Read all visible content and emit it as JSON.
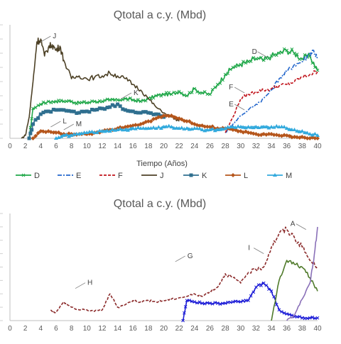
{
  "chart_data": [
    {
      "type": "line",
      "title": "Qtotal a c.y. (Mbd)",
      "xlabel": "Tiempo (Años)",
      "ylabel": "",
      "xlim": [
        0,
        40
      ],
      "ylim": [
        0,
        80
      ],
      "x_ticks": [
        "0",
        "2",
        "4",
        "6",
        "8",
        "10",
        "12",
        "14",
        "16",
        "18",
        "20",
        "22",
        "24",
        "26",
        "28",
        "30",
        "32",
        "34",
        "36",
        "38",
        "40"
      ],
      "grid": false,
      "legend": "bottom",
      "series": [
        {
          "name": "D",
          "color": "#21a84a",
          "marker": "x",
          "dash": "solid",
          "x": [
            2.5,
            3,
            4,
            5,
            6,
            7,
            8,
            9,
            10,
            11,
            12,
            13,
            14,
            15,
            16,
            17,
            18,
            19,
            20,
            21,
            22,
            23,
            24,
            25,
            26,
            27,
            28,
            29,
            30,
            31,
            32,
            33,
            34,
            35,
            36,
            37,
            38,
            39,
            40
          ],
          "y": [
            0,
            21,
            24,
            26,
            26,
            26,
            26,
            25,
            25,
            26,
            26,
            27,
            27,
            28,
            27,
            26,
            28,
            30,
            31,
            31,
            33,
            30,
            35,
            32,
            31,
            38,
            45,
            50,
            52,
            54,
            56,
            55,
            58,
            60,
            62,
            60,
            56,
            58,
            48
          ]
        },
        {
          "name": "E",
          "color": "#2266cc",
          "marker": "none",
          "dash": "dashdot",
          "x": [
            28,
            29,
            30,
            31,
            32,
            33,
            34,
            35,
            36,
            37,
            38,
            39,
            39.5,
            40
          ],
          "y": [
            4,
            10,
            16,
            20,
            24,
            28,
            34,
            42,
            47,
            52,
            54,
            60,
            62,
            56
          ]
        },
        {
          "name": "F",
          "color": "#c0121a",
          "marker": "none",
          "dash": "dash",
          "x": [
            28,
            29,
            30,
            31,
            32,
            33,
            34,
            35,
            36,
            37,
            38,
            39,
            40
          ],
          "y": [
            4,
            15,
            28,
            31,
            33,
            34,
            35,
            37,
            38,
            40,
            43,
            45,
            47
          ]
        },
        {
          "name": "J",
          "color": "#4d4126",
          "marker": "none",
          "dash": "solid",
          "x": [
            1.5,
            2,
            2.5,
            3,
            3.5,
            4,
            4.5,
            5,
            5.5,
            6,
            6.5,
            7,
            8,
            9,
            10,
            11,
            12,
            13,
            14,
            15,
            16,
            17,
            18,
            19,
            20,
            21,
            22
          ],
          "y": [
            0,
            2,
            15,
            40,
            68,
            70,
            58,
            64,
            66,
            62,
            65,
            55,
            42,
            44,
            42,
            43,
            44,
            46,
            44,
            42,
            38,
            34,
            28,
            22,
            18,
            15,
            12
          ]
        },
        {
          "name": "K",
          "color": "#2f6f8f",
          "marker": "square",
          "dash": "solid",
          "x": [
            2.5,
            3,
            4,
            5,
            6,
            7,
            8,
            9,
            10,
            11,
            12,
            13,
            14,
            15,
            16,
            17,
            18,
            19,
            20
          ],
          "y": [
            0,
            10,
            17,
            19,
            20,
            20,
            19,
            18,
            19,
            20,
            21,
            22,
            24,
            20,
            19,
            18,
            18,
            17,
            15
          ]
        },
        {
          "name": "L",
          "color": "#b5561c",
          "marker": "diamond",
          "dash": "solid",
          "x": [
            3,
            4,
            5,
            6,
            7,
            8,
            9,
            10,
            11,
            12,
            13,
            14,
            15,
            16,
            17,
            18,
            19,
            20,
            21,
            22,
            23,
            24,
            25,
            26,
            27,
            28,
            29,
            30,
            31,
            32,
            33,
            34,
            35,
            36,
            37,
            38,
            39,
            40
          ],
          "y": [
            0,
            5,
            5,
            4,
            3,
            3,
            3,
            3,
            4,
            5,
            6,
            7,
            8,
            9,
            10,
            12,
            14,
            16,
            16,
            14,
            12,
            10,
            9,
            8,
            7,
            7,
            6,
            5,
            4,
            3,
            3,
            3,
            2,
            2,
            1,
            1,
            0,
            0
          ]
        },
        {
          "name": "M",
          "color": "#33aadd",
          "marker": "triangle",
          "dash": "solid",
          "x": [
            6,
            7,
            8,
            9,
            10,
            11,
            12,
            13,
            14,
            15,
            16,
            17,
            18,
            19,
            20,
            21,
            22,
            23,
            24,
            25,
            26,
            27,
            28,
            29,
            30,
            31,
            32,
            33,
            34,
            35,
            36,
            37,
            38,
            39,
            40
          ],
          "y": [
            0,
            2,
            2,
            3,
            4,
            4,
            5,
            5,
            6,
            6,
            7,
            7,
            7,
            7,
            8,
            8,
            7,
            7,
            7,
            6,
            6,
            6,
            7,
            8,
            8,
            8,
            8,
            8,
            8,
            8,
            7,
            6,
            5,
            3,
            2
          ]
        }
      ],
      "annotations": [
        {
          "label": "J",
          "x": 4,
          "y": 68
        },
        {
          "label": "D",
          "x": 33.5,
          "y": 57
        },
        {
          "label": "K",
          "x": 14.5,
          "y": 28
        },
        {
          "label": "F",
          "x": 30.5,
          "y": 32
        },
        {
          "label": "E",
          "x": 30.5,
          "y": 20
        },
        {
          "label": "L",
          "x": 5.3,
          "y": 8
        },
        {
          "label": "M",
          "x": 7,
          "y": 6
        }
      ]
    },
    {
      "type": "line",
      "title": "Qtotal a c.y. (Mbd)",
      "xlabel": "",
      "ylabel": "",
      "xlim": [
        0,
        40
      ],
      "ylim": [
        0,
        80
      ],
      "x_ticks": [
        "0",
        "2",
        "4",
        "6",
        "8",
        "10",
        "12",
        "14",
        "16",
        "18",
        "20",
        "22",
        "24",
        "26",
        "28",
        "30",
        "32",
        "34",
        "36",
        "38",
        "40"
      ],
      "grid": false,
      "legend": "none",
      "series": [
        {
          "name": "H",
          "color": "#8b2a2a",
          "marker": "none",
          "dash": "dash",
          "x": [
            5.3,
            6,
            7,
            8,
            9,
            10,
            11,
            12,
            13,
            14,
            15,
            16,
            17,
            18,
            19,
            20,
            21,
            22,
            23,
            24,
            25,
            26,
            27,
            28,
            29,
            30,
            31,
            32,
            33,
            34,
            35,
            36,
            37,
            38,
            39,
            40
          ],
          "y": [
            8,
            6,
            14,
            10,
            8,
            8,
            7,
            8,
            20,
            10,
            12,
            15,
            14,
            15,
            14,
            15,
            16,
            17,
            18,
            20,
            18,
            22,
            25,
            35,
            32,
            28,
            36,
            38,
            40,
            55,
            65,
            68,
            62,
            55,
            45,
            40
          ]
        },
        {
          "name": "G",
          "color": "#1a1ad6",
          "marker": "x",
          "dash": "solid",
          "x": [
            22.5,
            23,
            24,
            25,
            26,
            27,
            28,
            29,
            30,
            31,
            32,
            33,
            34,
            35,
            36,
            37,
            38,
            39,
            40
          ],
          "y": [
            0,
            15,
            14,
            13,
            13,
            13,
            13,
            14,
            14,
            15,
            25,
            28,
            22,
            8,
            5,
            3,
            2,
            2,
            2
          ]
        },
        {
          "name": "I",
          "color": "#4f7a2a",
          "marker": "none",
          "dash": "solid",
          "x": [
            34,
            35,
            36,
            37,
            38,
            39,
            40
          ],
          "y": [
            0,
            30,
            45,
            42,
            40,
            32,
            22
          ]
        },
        {
          "name": "A",
          "color": "#8a70b8",
          "marker": "none",
          "dash": "solid",
          "x": [
            36,
            37,
            38,
            39,
            39.5,
            40
          ],
          "y": [
            0,
            4,
            16,
            28,
            45,
            70
          ]
        }
      ],
      "annotations": [
        {
          "label": "A",
          "x": 38.5,
          "y": 68
        },
        {
          "label": "I",
          "x": 33,
          "y": 50
        },
        {
          "label": "G",
          "x": 21.5,
          "y": 44
        },
        {
          "label": "H",
          "x": 8.5,
          "y": 24
        }
      ]
    }
  ]
}
